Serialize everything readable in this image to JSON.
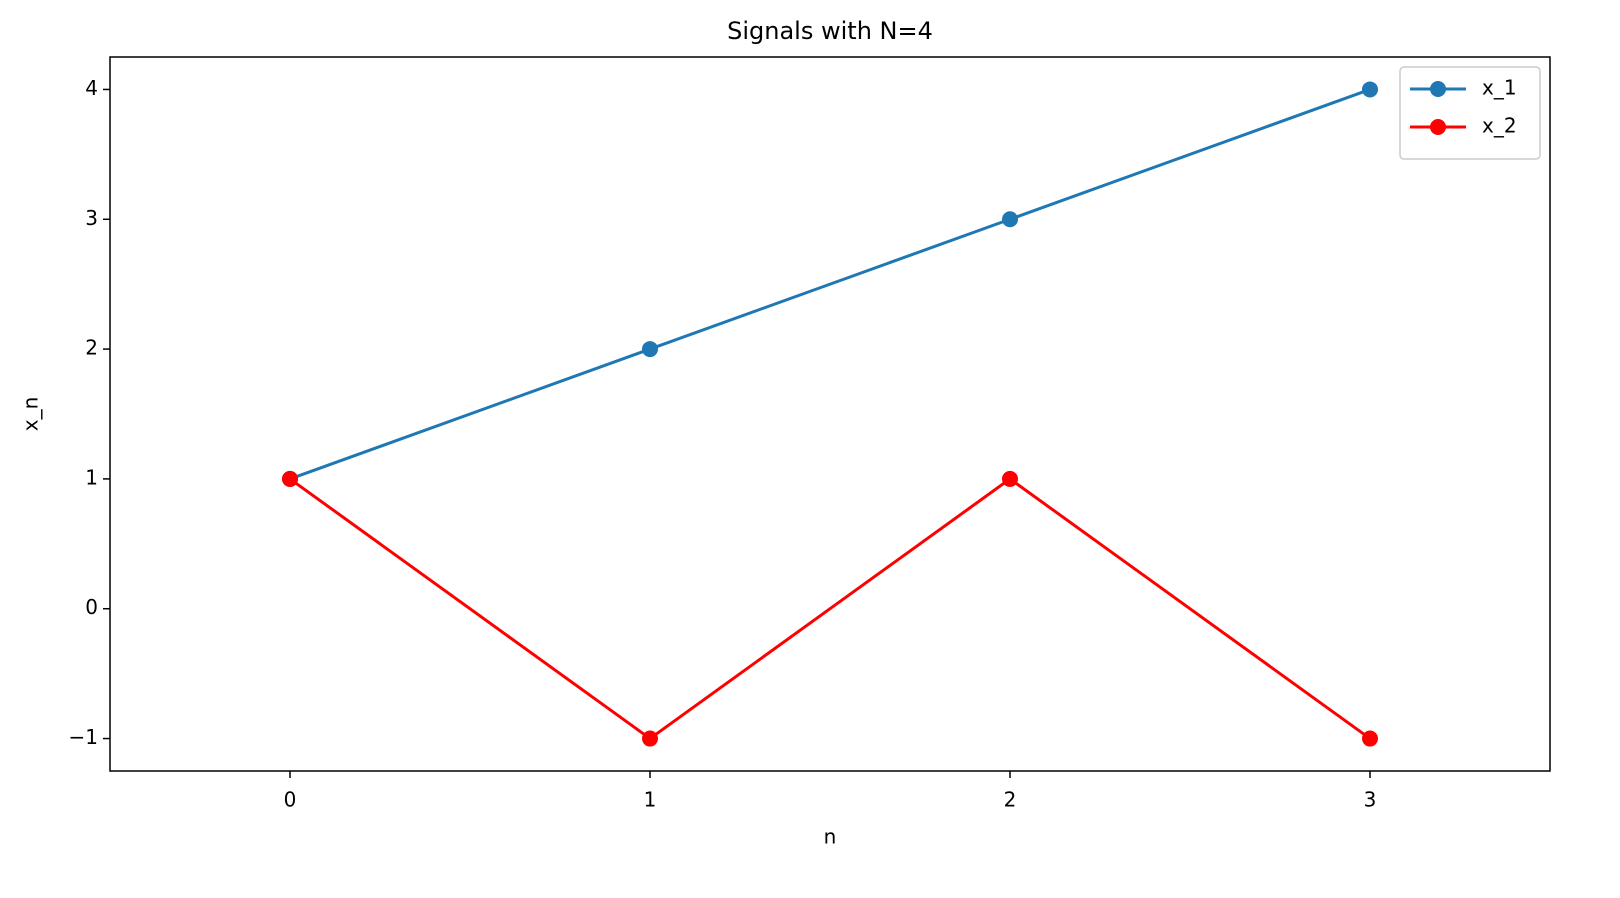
{
  "chart_data": {
    "type": "line",
    "title": "Signals with N=4",
    "xlabel": "n",
    "ylabel": "x_n",
    "x": [
      0,
      1,
      2,
      3
    ],
    "series": [
      {
        "name": "x_1",
        "color": "#1f77b4",
        "values": [
          1,
          2,
          3,
          4
        ]
      },
      {
        "name": "x_2",
        "color": "#ff0000",
        "values": [
          1,
          -1,
          1,
          -1
        ]
      }
    ],
    "xlim": [
      -0.5,
      3.5
    ],
    "ylim": [
      -1.25,
      4.25
    ],
    "xticks": [
      0,
      1,
      2,
      3
    ],
    "yticks": [
      {
        "value": -1,
        "label": "−1"
      },
      0,
      1,
      2,
      3,
      4
    ],
    "grid": false,
    "legend": "upper right"
  }
}
